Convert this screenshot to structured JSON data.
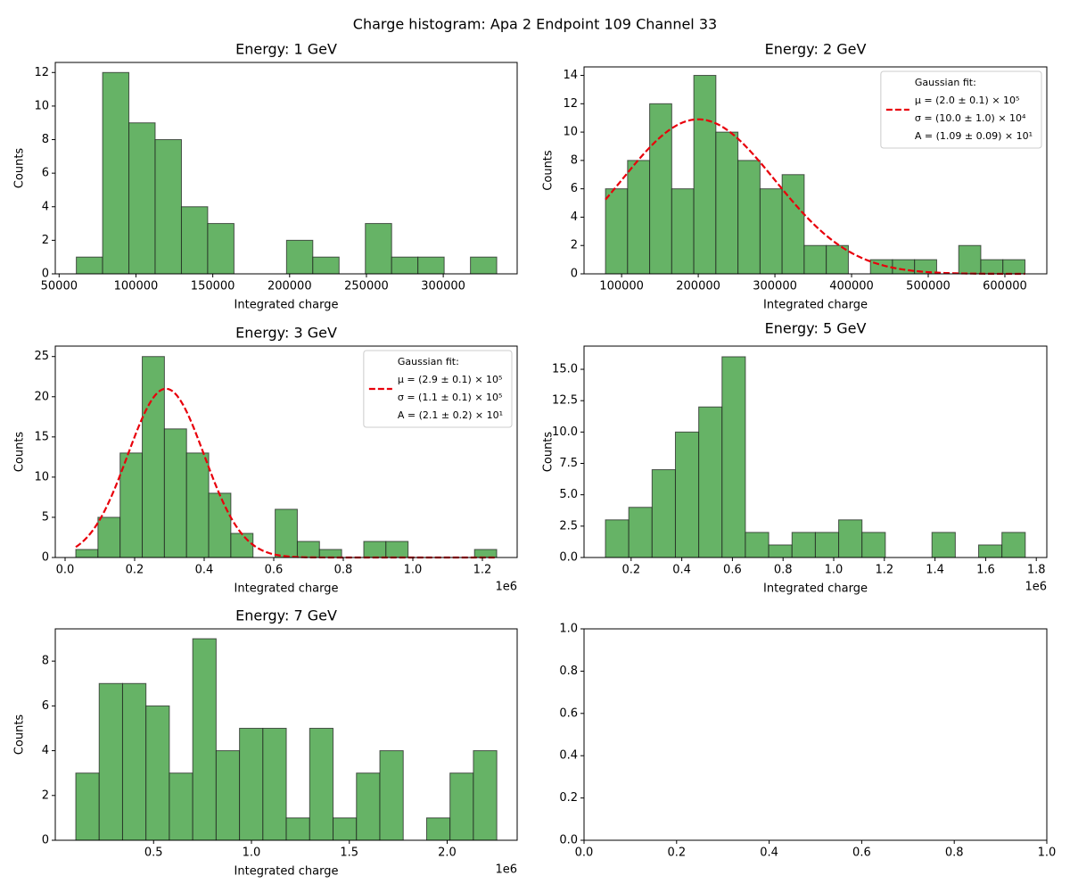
{
  "title": "Charge histogram: Apa 2 Endpoint 109 Channel 33",
  "chart_data": [
    {
      "type": "histogram",
      "title": "Energy: 1 GeV",
      "xlabel": "Integrated charge",
      "ylabel": "Counts",
      "color": "#66b366",
      "edgecolor": "#1a1a1a",
      "bins": [
        61200,
        78300,
        95400,
        112500,
        129600,
        146700,
        163800,
        180900,
        198000,
        215100,
        232200,
        249300,
        266400,
        283500,
        300600,
        317700,
        334800
      ],
      "values": [
        1,
        12,
        9,
        8,
        4,
        3,
        0,
        0,
        2,
        1,
        0,
        3,
        1,
        1,
        0,
        1
      ],
      "xlim": [
        47500,
        348100
      ],
      "xticks": [
        50000,
        100000,
        150000,
        200000,
        250000,
        300000
      ],
      "ylim": [
        0,
        12.6
      ],
      "yticks": [
        0,
        2,
        4,
        6,
        8,
        10,
        12
      ]
    },
    {
      "type": "histogram",
      "title": "Energy: 2 GeV",
      "xlabel": "Integrated charge",
      "ylabel": "Counts",
      "color": "#66b366",
      "edgecolor": "#1a1a1a",
      "bins": [
        79000,
        107800,
        136600,
        165400,
        194200,
        223000,
        251800,
        280600,
        309400,
        338200,
        367000,
        395800,
        424600,
        453400,
        482200,
        511000,
        539800,
        568600,
        597400,
        626200
      ],
      "values": [
        6,
        8,
        12,
        6,
        14,
        10,
        8,
        6,
        7,
        2,
        2,
        0,
        1,
        1,
        1,
        0,
        2,
        1,
        1
      ],
      "xlim": [
        51000,
        654700
      ],
      "xticks": [
        100000,
        200000,
        300000,
        400000,
        500000,
        600000
      ],
      "ylim": [
        0,
        14.6
      ],
      "yticks": [
        0,
        2,
        4,
        6,
        8,
        10,
        12,
        14
      ],
      "fit": {
        "label": [
          "Gaussian fit:",
          "μ = (2.0 ± 0.1) × 10⁵",
          "σ = (10.0 ± 1.0) × 10⁴",
          "A = (1.09 ± 0.09) × 10¹"
        ],
        "mu": 200000,
        "sigma": 100000,
        "A": 10.9,
        "color": "#e8000b"
      },
      "legend": "upper right"
    },
    {
      "type": "histogram",
      "title": "Energy: 3 GeV",
      "xlabel": "Integrated charge",
      "ylabel": "Counts",
      "x_offset_text": "1e6",
      "color": "#66b366",
      "edgecolor": "#1a1a1a",
      "bins": [
        30800,
        94500,
        158200,
        221900,
        285600,
        349300,
        413000,
        476700,
        540400,
        604100,
        667800,
        731500,
        795200,
        858900,
        922600,
        986300,
        1050000,
        1113700,
        1177400,
        1241100
      ],
      "values": [
        1,
        5,
        13,
        25,
        16,
        13,
        8,
        3,
        0,
        6,
        2,
        1,
        0,
        2,
        2,
        0,
        0,
        0,
        1
      ],
      "xlim": [
        -28200,
        1300000
      ],
      "xticks": [
        {
          "value": 0,
          "label": "0.0"
        },
        {
          "value": 200000,
          "label": "0.2"
        },
        {
          "value": 400000,
          "label": "0.4"
        },
        {
          "value": 600000,
          "label": "0.6"
        },
        {
          "value": 800000,
          "label": "0.8"
        },
        {
          "value": 1000000,
          "label": "1.0"
        },
        {
          "value": 1200000,
          "label": "1.2"
        }
      ],
      "ylim": [
        0,
        26.3
      ],
      "yticks": [
        0,
        5,
        10,
        15,
        20,
        25
      ],
      "fit": {
        "label": [
          "Gaussian fit:",
          "μ = (2.9 ± 0.1) × 10⁵",
          "σ = (1.1 ± 0.1) × 10⁵",
          "A = (2.1 ± 0.2) × 10¹"
        ],
        "mu": 290000,
        "sigma": 110000,
        "A": 21,
        "color": "#e8000b"
      },
      "legend": "upper right"
    },
    {
      "type": "histogram",
      "title": "Energy: 5 GeV",
      "xlabel": "Integrated charge",
      "ylabel": "Counts",
      "x_offset_text": "1e6",
      "color": "#66b366",
      "edgecolor": "#1a1a1a",
      "bins": [
        98600,
        190700,
        282800,
        374900,
        467000,
        559100,
        651200,
        743300,
        835400,
        927500,
        1019600,
        1111700,
        1203800,
        1295900,
        1388000,
        1480100,
        1572200,
        1664300,
        1756400
      ],
      "values": [
        3,
        4,
        7,
        10,
        12,
        16,
        2,
        1,
        2,
        2,
        3,
        2,
        0,
        0,
        2,
        0,
        1,
        2
      ],
      "xlim": [
        14100,
        1841500
      ],
      "xticks": [
        {
          "value": 200000,
          "label": "0.2"
        },
        {
          "value": 400000,
          "label": "0.4"
        },
        {
          "value": 600000,
          "label": "0.6"
        },
        {
          "value": 800000,
          "label": "0.8"
        },
        {
          "value": 1000000,
          "label": "1.0"
        },
        {
          "value": 1200000,
          "label": "1.2"
        },
        {
          "value": 1400000,
          "label": "1.4"
        },
        {
          "value": 1600000,
          "label": "1.6"
        },
        {
          "value": 1800000,
          "label": "1.8"
        }
      ],
      "ylim": [
        0,
        16.85
      ],
      "yticks": [
        {
          "value": 0,
          "label": "0.0"
        },
        2.5,
        {
          "value": 5,
          "label": "5.0"
        },
        7.5,
        {
          "value": 10,
          "label": "10.0"
        },
        12.5,
        {
          "value": 15,
          "label": "15.0"
        }
      ]
    },
    {
      "type": "histogram",
      "title": "Energy: 7 GeV",
      "xlabel": "Integrated charge",
      "ylabel": "Counts",
      "x_offset_text": "1e6",
      "color": "#66b366",
      "edgecolor": "#1a1a1a",
      "bins": [
        102500,
        222000,
        341500,
        461000,
        580500,
        700000,
        819500,
        939000,
        1058500,
        1178000,
        1297500,
        1417000,
        1536500,
        1656000,
        1775500,
        1895000,
        2014500,
        2134000,
        2253500
      ],
      "values": [
        3,
        7,
        7,
        6,
        3,
        9,
        4,
        5,
        5,
        1,
        5,
        1,
        3,
        4,
        0,
        1,
        3,
        4
      ],
      "xlim": [
        -2300,
        2357600
      ],
      "xticks": [
        {
          "value": 500000,
          "label": "0.5"
        },
        {
          "value": 1000000,
          "label": "1.0"
        },
        {
          "value": 1500000,
          "label": "1.5"
        },
        {
          "value": 2000000,
          "label": "2.0"
        }
      ],
      "ylim": [
        0,
        9.44
      ],
      "yticks": [
        0,
        2,
        4,
        6,
        8
      ]
    },
    {
      "type": "axes",
      "xlim": [
        0,
        1
      ],
      "xticks": [
        {
          "value": 0,
          "label": "0.0"
        },
        0.2,
        0.4,
        0.6,
        0.8,
        {
          "value": 1,
          "label": "1.0"
        }
      ],
      "ylim": [
        0,
        1
      ],
      "yticks": [
        {
          "value": 0,
          "label": "0.0"
        },
        0.2,
        0.4,
        0.6,
        0.8,
        {
          "value": 1,
          "label": "1.0"
        }
      ]
    }
  ]
}
